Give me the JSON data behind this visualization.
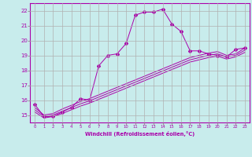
{
  "xlabel": "Windchill (Refroidissement éolien,°C)",
  "bg_color": "#c8ecec",
  "grid_color": "#b0b0b0",
  "line_color": "#aa00aa",
  "xlim": [
    -0.5,
    23.5
  ],
  "ylim": [
    14.5,
    22.5
  ],
  "yticks": [
    15,
    16,
    17,
    18,
    19,
    20,
    21,
    22
  ],
  "xticks": [
    0,
    1,
    2,
    3,
    4,
    5,
    6,
    7,
    8,
    9,
    10,
    11,
    12,
    13,
    14,
    15,
    16,
    17,
    18,
    19,
    20,
    21,
    22,
    23
  ],
  "lines": [
    {
      "x": [
        0,
        1,
        2,
        3,
        4,
        5,
        6,
        7,
        8,
        9,
        10,
        11,
        12,
        13,
        14,
        15,
        16,
        17,
        18,
        19,
        20,
        21,
        22,
        23
      ],
      "y": [
        15.7,
        14.9,
        14.9,
        15.2,
        15.5,
        16.1,
        16.0,
        18.3,
        19.0,
        19.1,
        19.8,
        21.7,
        21.9,
        21.9,
        22.1,
        21.1,
        20.6,
        19.3,
        19.3,
        19.1,
        19.0,
        18.9,
        19.4,
        19.5
      ],
      "marker": "D",
      "markersize": 2.0
    },
    {
      "x": [
        0,
        1,
        2,
        3,
        4,
        5,
        6,
        7,
        8,
        9,
        10,
        11,
        12,
        13,
        14,
        15,
        16,
        17,
        18,
        19,
        20,
        21,
        22,
        23
      ],
      "y": [
        15.5,
        15.0,
        15.1,
        15.4,
        15.65,
        15.9,
        16.1,
        16.35,
        16.6,
        16.85,
        17.1,
        17.35,
        17.6,
        17.85,
        18.1,
        18.35,
        18.6,
        18.85,
        19.0,
        19.15,
        19.25,
        19.0,
        19.1,
        19.5
      ],
      "marker": null,
      "markersize": 0
    },
    {
      "x": [
        0,
        1,
        2,
        3,
        4,
        5,
        6,
        7,
        8,
        9,
        10,
        11,
        12,
        13,
        14,
        15,
        16,
        17,
        18,
        19,
        20,
        21,
        22,
        23
      ],
      "y": [
        15.35,
        14.9,
        15.0,
        15.25,
        15.5,
        15.75,
        15.95,
        16.2,
        16.45,
        16.7,
        16.95,
        17.2,
        17.45,
        17.7,
        17.95,
        18.2,
        18.45,
        18.7,
        18.85,
        19.0,
        19.1,
        18.9,
        19.0,
        19.35
      ],
      "marker": null,
      "markersize": 0
    },
    {
      "x": [
        0,
        1,
        2,
        3,
        4,
        5,
        6,
        7,
        8,
        9,
        10,
        11,
        12,
        13,
        14,
        15,
        16,
        17,
        18,
        19,
        20,
        21,
        22,
        23
      ],
      "y": [
        15.2,
        14.8,
        14.9,
        15.1,
        15.35,
        15.6,
        15.8,
        16.05,
        16.3,
        16.55,
        16.8,
        17.05,
        17.3,
        17.55,
        17.8,
        18.05,
        18.3,
        18.55,
        18.7,
        18.85,
        18.95,
        18.75,
        18.9,
        19.2
      ],
      "marker": null,
      "markersize": 0
    }
  ]
}
